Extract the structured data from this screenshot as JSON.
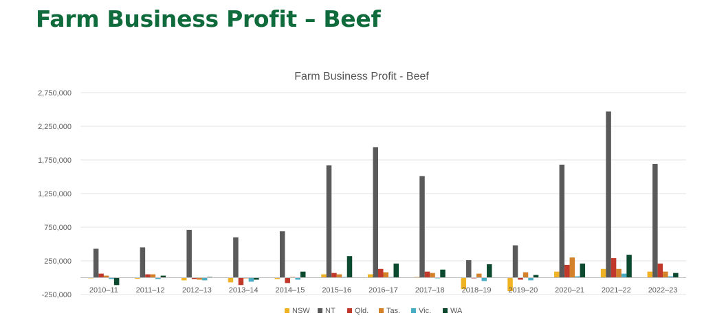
{
  "slide": {
    "title": "Farm Business Profit – Beef"
  },
  "chart_data": {
    "type": "bar",
    "title": "Farm Business Profit - Beef",
    "xlabel": "",
    "ylabel": "",
    "ylim": [
      -250000,
      2750000
    ],
    "y_ticks": [
      -250000,
      250000,
      750000,
      1250000,
      1750000,
      2250000,
      2750000
    ],
    "y_tick_labels": [
      "-250,000",
      "250,000",
      "750,000",
      "1,250,000",
      "1,750,000",
      "2,250,000",
      "2,750,000"
    ],
    "grid": true,
    "legend_position": "bottom",
    "categories": [
      "2010–11",
      "2011–12",
      "2012–13",
      "2013–14",
      "2014–15",
      "2015–16",
      "2016–17",
      "2017–18",
      "2018–19",
      "2019–20",
      "2020–21",
      "2021–22",
      "2022–23"
    ],
    "series": [
      {
        "name": "NSW",
        "color": "#f0b323",
        "values": [
          -10000,
          -15000,
          -40000,
          -70000,
          -20000,
          50000,
          50000,
          10000,
          -170000,
          -200000,
          90000,
          130000,
          90000
        ]
      },
      {
        "name": "NT",
        "color": "#5a5a5a",
        "values": [
          430000,
          450000,
          710000,
          600000,
          690000,
          1670000,
          1940000,
          1510000,
          260000,
          480000,
          1680000,
          2470000,
          1690000
        ]
      },
      {
        "name": "Qld.",
        "color": "#c0392b",
        "values": [
          60000,
          50000,
          -20000,
          -110000,
          -80000,
          70000,
          130000,
          90000,
          -10000,
          -30000,
          190000,
          290000,
          210000
        ]
      },
      {
        "name": "Tas.",
        "color": "#d4822a",
        "values": [
          30000,
          50000,
          -30000,
          -10000,
          10000,
          50000,
          80000,
          70000,
          60000,
          80000,
          300000,
          130000,
          90000
        ]
      },
      {
        "name": "Vic.",
        "color": "#4bacc6",
        "values": [
          -20000,
          -20000,
          -40000,
          -60000,
          -30000,
          10000,
          10000,
          -10000,
          -50000,
          -40000,
          20000,
          60000,
          20000
        ]
      },
      {
        "name": "WA",
        "color": "#0b4a2e",
        "values": [
          -110000,
          30000,
          10000,
          -30000,
          90000,
          320000,
          210000,
          120000,
          200000,
          40000,
          210000,
          340000,
          70000
        ]
      }
    ]
  }
}
